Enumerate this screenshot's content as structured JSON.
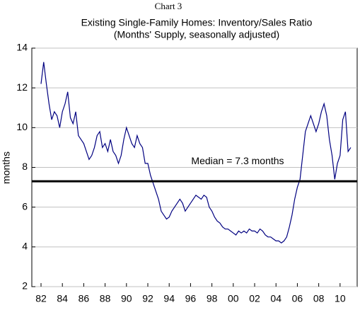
{
  "chart_data": {
    "type": "line",
    "header": "Chart 3",
    "title": "Existing Single-Family Homes: Inventory/Sales Ratio",
    "subtitle": "(Months' Supply, seasonally adjusted)",
    "ylabel": "months",
    "xlim": [
      1981.14,
      2011.6
    ],
    "xticks": [
      {
        "value": 1982,
        "label": "82"
      },
      {
        "value": 1984,
        "label": "84"
      },
      {
        "value": 1986,
        "label": "86"
      },
      {
        "value": 1988,
        "label": "88"
      },
      {
        "value": 1990,
        "label": "90"
      },
      {
        "value": 1992,
        "label": "92"
      },
      {
        "value": 1994,
        "label": "94"
      },
      {
        "value": 1996,
        "label": "96"
      },
      {
        "value": 1998,
        "label": "98"
      },
      {
        "value": 2000,
        "label": "00"
      },
      {
        "value": 2002,
        "label": "02"
      },
      {
        "value": 2004,
        "label": "04"
      },
      {
        "value": 2006,
        "label": "06"
      },
      {
        "value": 2008,
        "label": "08"
      },
      {
        "value": 2010,
        "label": "10"
      }
    ],
    "ylim": [
      2,
      14
    ],
    "yticks": [
      2,
      4,
      6,
      8,
      10,
      12,
      14
    ],
    "grid": true,
    "reference_line": {
      "value": 7.3,
      "label": "Median = 7.3 months"
    },
    "series": [
      {
        "name": "Inventory/Sales Ratio",
        "color": "#000080",
        "x": [
          1982,
          1982.25,
          1982.5,
          1982.75,
          1983,
          1983.25,
          1983.5,
          1983.75,
          1984,
          1984.25,
          1984.5,
          1984.75,
          1985,
          1985.25,
          1985.5,
          1985.75,
          1986,
          1986.25,
          1986.5,
          1986.75,
          1987,
          1987.25,
          1987.5,
          1987.75,
          1988,
          1988.25,
          1988.5,
          1988.75,
          1989,
          1989.25,
          1989.5,
          1989.75,
          1990,
          1990.25,
          1990.5,
          1990.75,
          1991,
          1991.25,
          1991.5,
          1991.75,
          1992,
          1992.25,
          1992.5,
          1992.75,
          1993,
          1993.25,
          1993.5,
          1993.75,
          1994,
          1994.25,
          1994.5,
          1994.75,
          1995,
          1995.25,
          1995.5,
          1995.75,
          1996,
          1996.25,
          1996.5,
          1996.75,
          1997,
          1997.25,
          1997.5,
          1997.75,
          1998,
          1998.25,
          1998.5,
          1998.75,
          1999,
          1999.25,
          1999.5,
          1999.75,
          2000,
          2000.25,
          2000.5,
          2000.75,
          2001,
          2001.25,
          2001.5,
          2001.75,
          2002,
          2002.25,
          2002.5,
          2002.75,
          2003,
          2003.25,
          2003.5,
          2003.75,
          2004,
          2004.25,
          2004.5,
          2004.75,
          2005,
          2005.25,
          2005.5,
          2005.75,
          2006,
          2006.25,
          2006.5,
          2006.75,
          2007,
          2007.25,
          2007.5,
          2007.75,
          2008,
          2008.25,
          2008.5,
          2008.75,
          2009,
          2009.25,
          2009.5,
          2009.75,
          2010,
          2010.25,
          2010.5,
          2010.75,
          2011
        ],
        "values": [
          12.2,
          13.3,
          12.2,
          11.2,
          10.4,
          10.8,
          10.6,
          10.0,
          10.8,
          11.2,
          11.8,
          10.5,
          10.2,
          10.8,
          9.6,
          9.4,
          9.2,
          8.8,
          8.4,
          8.6,
          9.0,
          9.6,
          9.8,
          9.0,
          9.2,
          8.8,
          9.4,
          8.8,
          8.6,
          8.2,
          8.6,
          9.4,
          10.0,
          9.6,
          9.2,
          9.0,
          9.6,
          9.2,
          9.0,
          8.2,
          8.2,
          7.6,
          7.2,
          6.8,
          6.4,
          5.8,
          5.6,
          5.4,
          5.5,
          5.8,
          6.0,
          6.2,
          6.4,
          6.2,
          5.8,
          6.0,
          6.2,
          6.4,
          6.6,
          6.5,
          6.4,
          6.6,
          6.5,
          6.0,
          5.8,
          5.5,
          5.3,
          5.2,
          5.0,
          4.9,
          4.9,
          4.8,
          4.7,
          4.6,
          4.8,
          4.7,
          4.8,
          4.7,
          4.9,
          4.8,
          4.8,
          4.7,
          4.9,
          4.8,
          4.6,
          4.5,
          4.5,
          4.4,
          4.3,
          4.3,
          4.2,
          4.3,
          4.5,
          5.0,
          5.6,
          6.4,
          7.0,
          7.4,
          8.6,
          9.8,
          10.2,
          10.6,
          10.2,
          9.8,
          10.2,
          10.8,
          11.2,
          10.6,
          9.4,
          8.6,
          7.4,
          8.2,
          8.6,
          10.4,
          10.8,
          8.8,
          9.0
        ]
      }
    ]
  }
}
